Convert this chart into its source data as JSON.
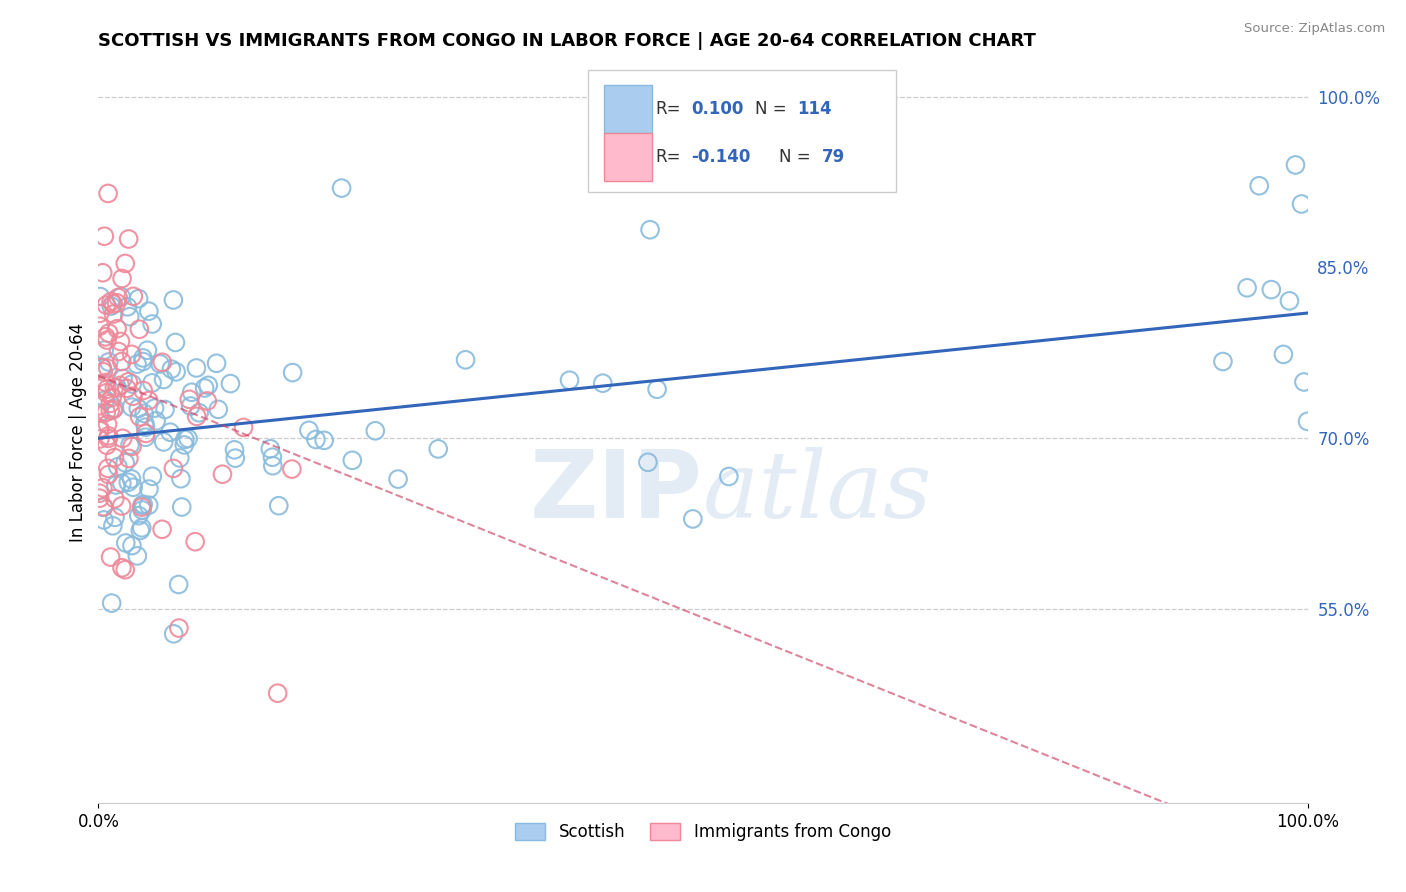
{
  "title": "SCOTTISH VS IMMIGRANTS FROM CONGO IN LABOR FORCE | AGE 20-64 CORRELATION CHART",
  "source": "Source: ZipAtlas.com",
  "ylabel": "In Labor Force | Age 20-64",
  "right_yticks": [
    1.0,
    0.85,
    0.7,
    0.55
  ],
  "right_ytick_labels": [
    "100.0%",
    "85.0%",
    "70.0%",
    "55.0%"
  ],
  "xlim": [
    0.0,
    1.0
  ],
  "ylim": [
    0.38,
    1.03
  ],
  "watermark_text": "ZIPatlas",
  "background_color": "#ffffff",
  "scatter_blue_color": "#88bbdd",
  "scatter_pink_color": "#ee8899",
  "trendline_blue_color": "#3366bb",
  "trendline_pink_color": "#cc4466",
  "dashed_line_color": "#cccccc",
  "blue_trend_y_start": 0.7,
  "blue_trend_y_end": 0.81,
  "pink_trend_y_start": 0.755,
  "pink_trend_y_end": 0.33
}
